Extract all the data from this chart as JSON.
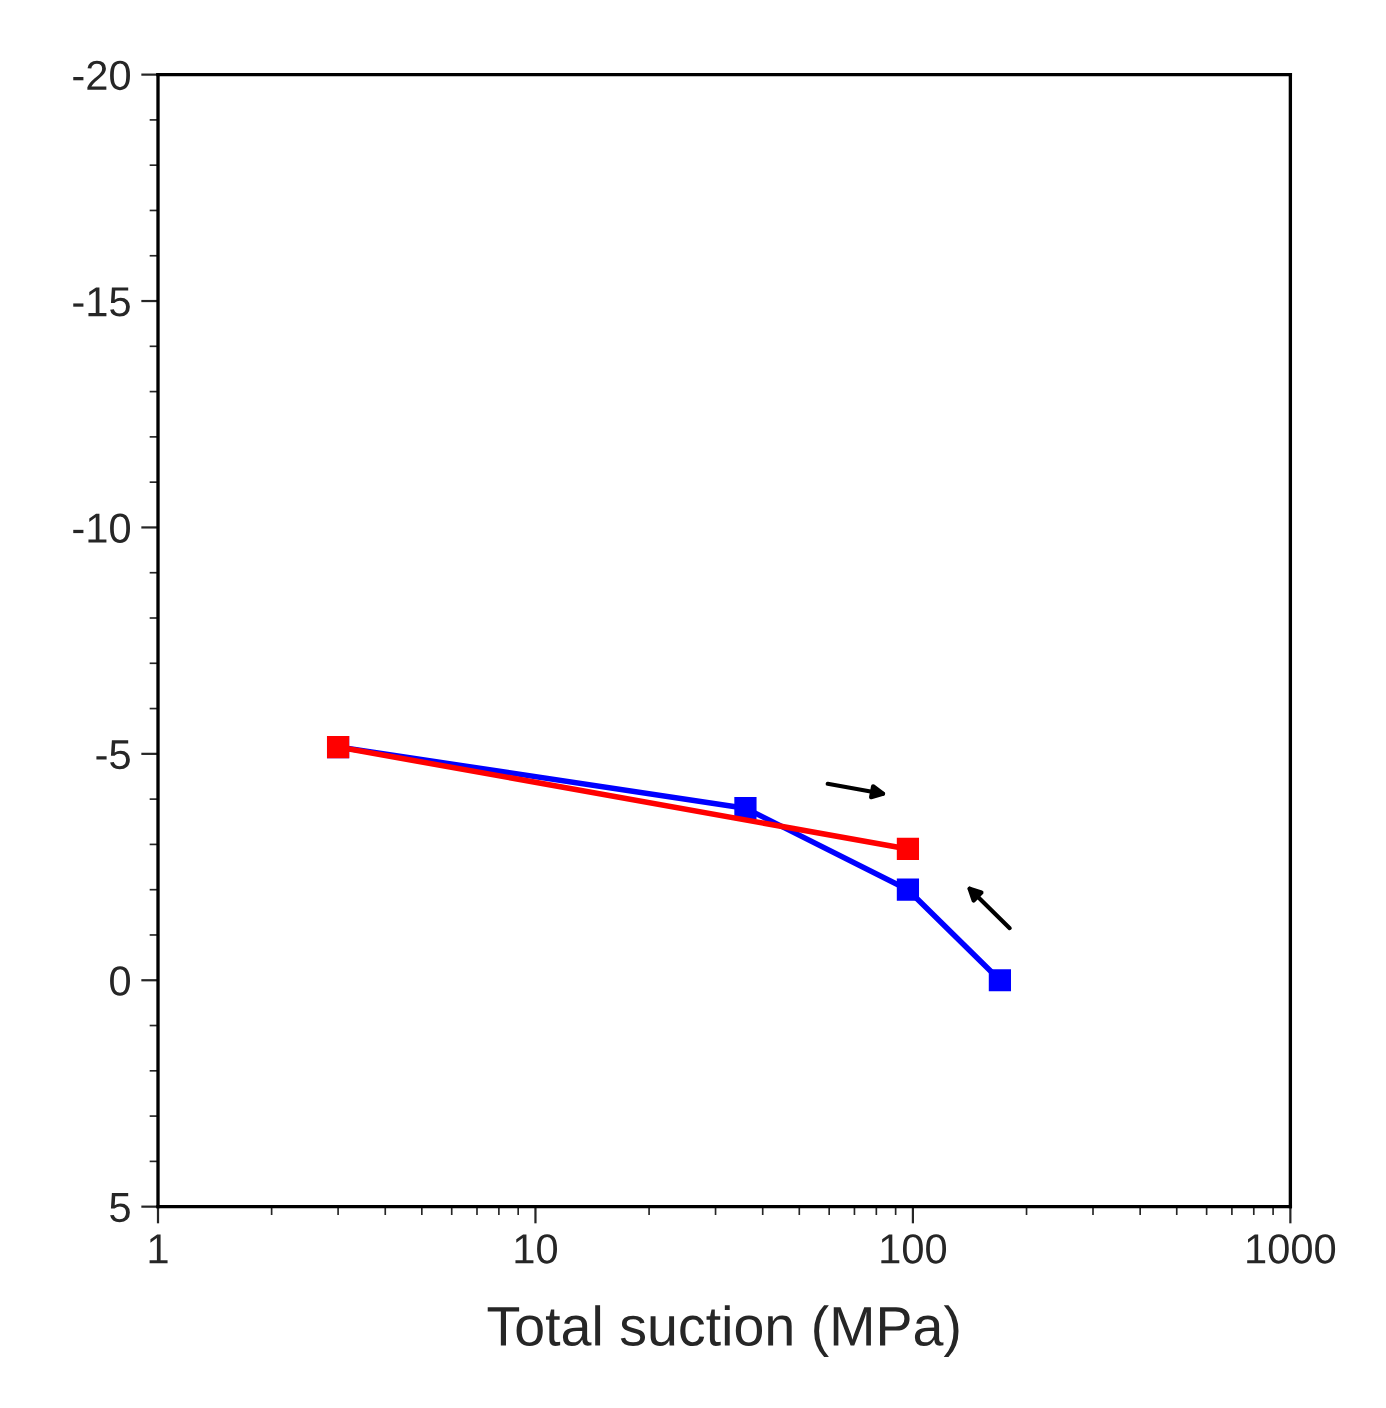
{
  "chart_data": {
    "type": "line",
    "xlabel": "Total suction (MPa)",
    "series": [
      {
        "color": "#0000ff",
        "x": [
          170,
          97,
          36,
          3
        ],
        "values": [
          0,
          -2.0,
          -3.8,
          -5.15
        ]
      },
      {
        "color": "#ff0000",
        "x": [
          3,
          97
        ],
        "values": [
          -5.15,
          -2.9
        ]
      }
    ],
    "log": "x",
    "xlim": [
      1,
      1000
    ],
    "xticks": [
      1,
      10,
      100,
      1000
    ],
    "ylim": [
      5,
      -20
    ],
    "yticks": [
      -20,
      -15,
      -10,
      -5,
      0,
      5
    ],
    "marker": "square",
    "line_style": "solid",
    "grid": false,
    "legend": false
  }
}
